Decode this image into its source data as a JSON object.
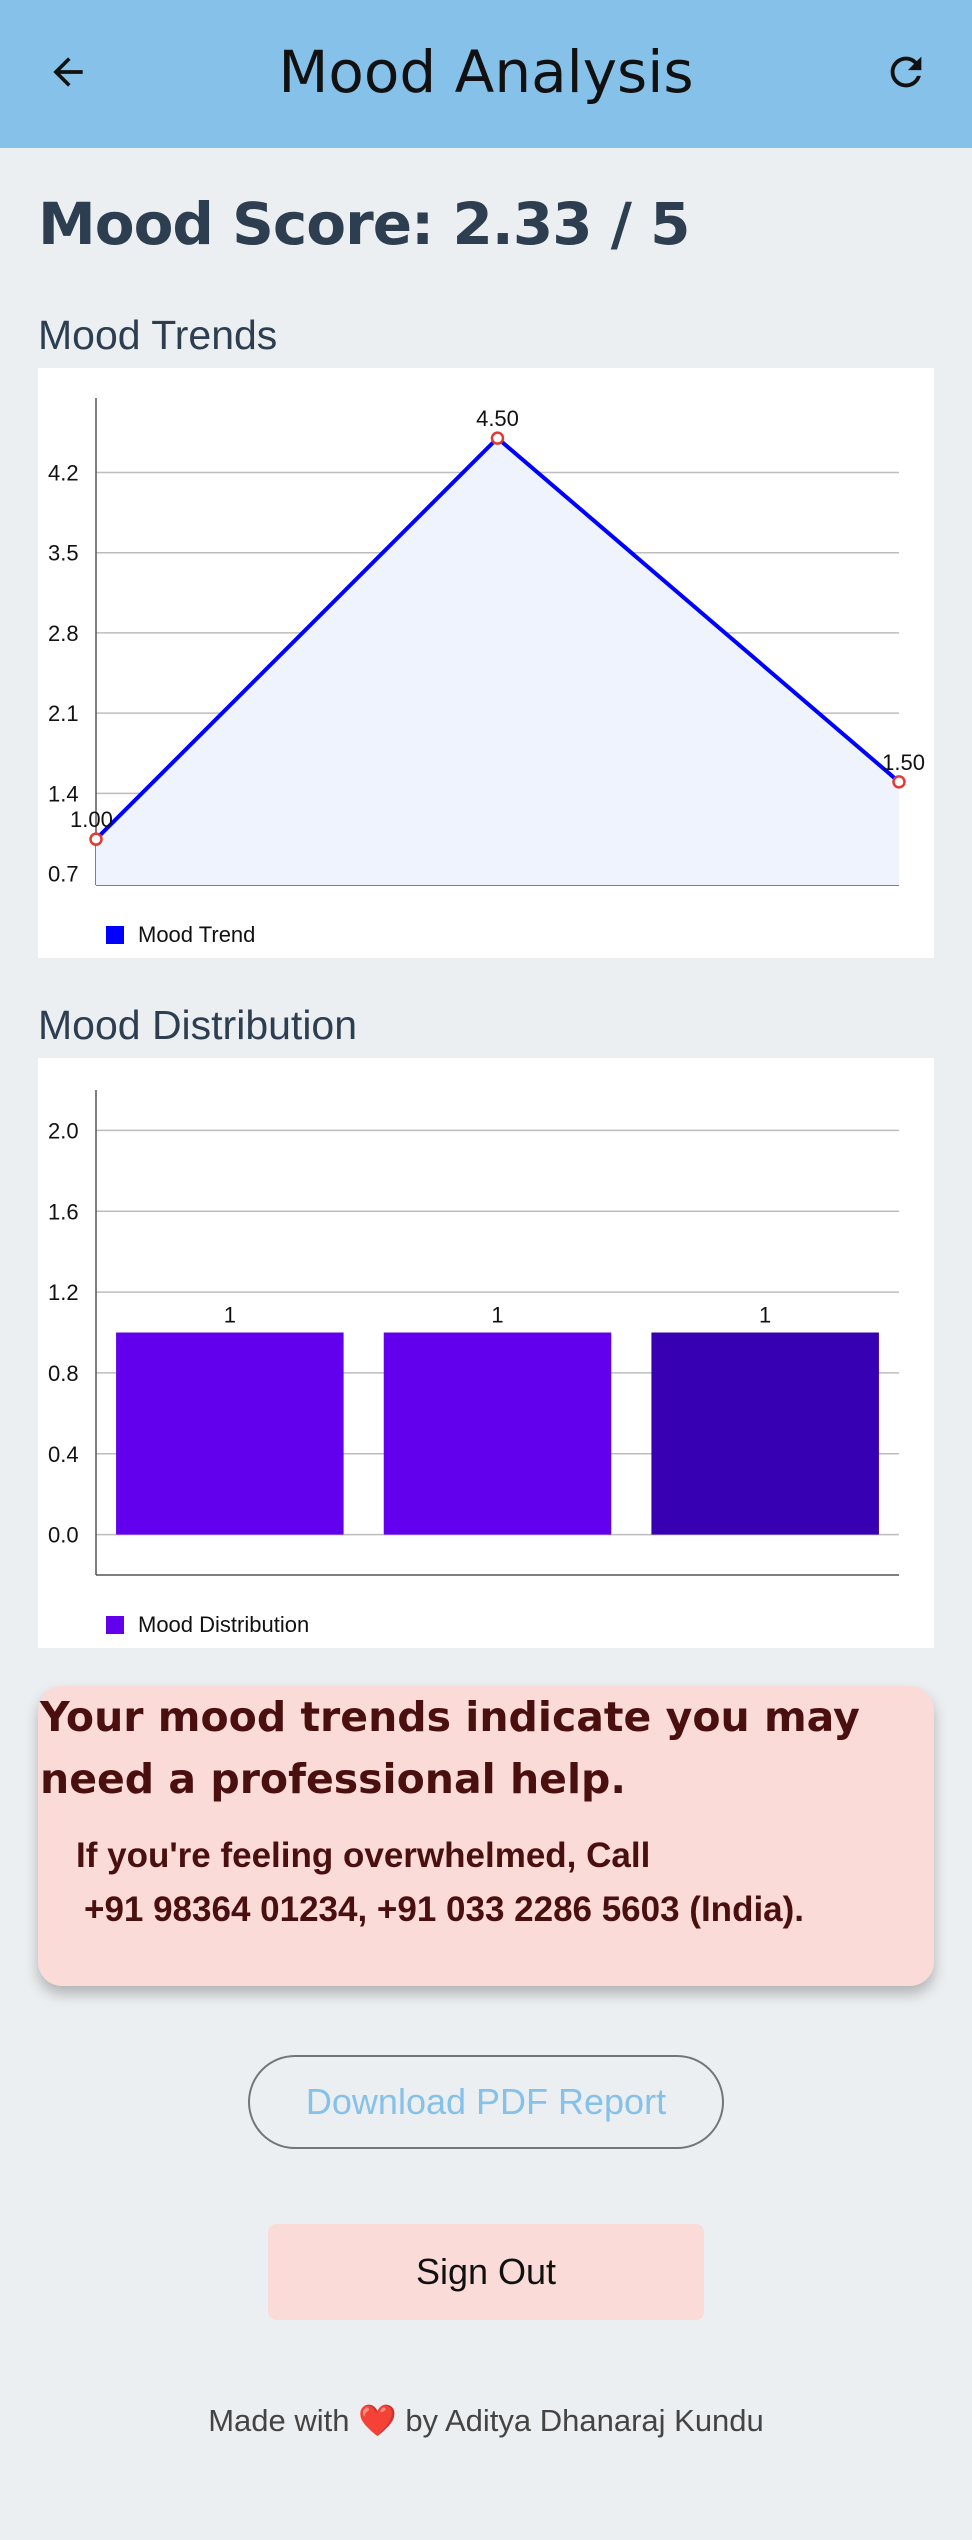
{
  "appbar": {
    "title": "Mood Analysis",
    "back_icon": "arrow-left-icon",
    "refresh_icon": "refresh-icon",
    "color": "#85C1E9"
  },
  "score": {
    "text": "Mood Score: 2.33 / 5"
  },
  "trends": {
    "title": "Mood Trends",
    "legend": "Mood Trend",
    "color": "#0000FF"
  },
  "distribution": {
    "title": "Mood Distribution",
    "legend": "Mood Distribution",
    "colors": [
      "#6200EE",
      "#6200EE",
      "#3700B3"
    ]
  },
  "chart_data": [
    {
      "type": "line",
      "x": [
        0,
        1,
        2
      ],
      "values": [
        1.0,
        4.5,
        1.5
      ],
      "point_labels": [
        "1.00",
        "4.50",
        "1.50"
      ],
      "yticks": [
        "0.7",
        "1.4",
        "2.1",
        "2.8",
        "3.5",
        "4.2"
      ],
      "ylim": [
        0.6,
        4.85
      ],
      "grid": true,
      "legend_placement": "bottom-left",
      "series": [
        {
          "name": "Mood Trend",
          "values": [
            1.0,
            4.5,
            1.5
          ]
        }
      ]
    },
    {
      "type": "bar",
      "categories": [
        "",
        "",
        ""
      ],
      "values": [
        1,
        1,
        1
      ],
      "value_labels": [
        "1",
        "1",
        "1"
      ],
      "yticks": [
        "0.0",
        "0.4",
        "0.8",
        "1.2",
        "1.6",
        "2.0"
      ],
      "ylim": [
        -0.2,
        2.2
      ],
      "grid": true,
      "legend_placement": "bottom-left",
      "series": [
        {
          "name": "Mood Distribution",
          "values": [
            1,
            1,
            1
          ]
        }
      ]
    }
  ],
  "alert": {
    "title": "Your mood trends indicate you may need a professional help.",
    "line1": "If you're feeling overwhelmed, Call",
    "line2": "+91 98364 01234, +91 033 2286 5603 (India)."
  },
  "actions": {
    "pdf_label": "Download PDF Report",
    "signout_label": "Sign Out"
  },
  "footer": {
    "prefix": "Made with ",
    "heart": "❤️",
    "suffix": " by Aditya Dhanaraj Kundu"
  }
}
